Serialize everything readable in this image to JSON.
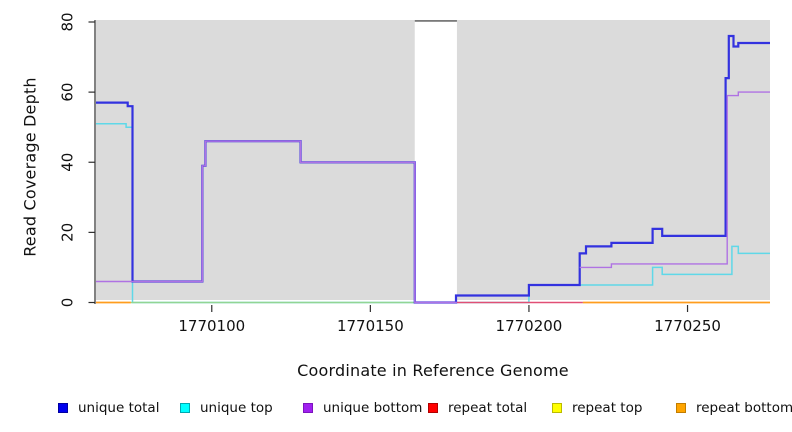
{
  "figure_type": "R step-line coverage plot",
  "chart_data": {
    "type": "line",
    "line_style": "step",
    "title": "",
    "xlabel": "Coordinate in Reference Genome",
    "ylabel": "Read Coverage Depth",
    "xlim": [
      1770063.5,
      1770276
    ],
    "ylim": [
      0,
      80
    ],
    "x_ticks": [
      1770100,
      1770150,
      1770200,
      1770250
    ],
    "y_ticks": [
      0,
      20,
      40,
      60,
      80
    ],
    "grid": false,
    "plot_bg_color": "#DBDBDB",
    "gap_region": {
      "note": "white uncovered interval in reference coordinates",
      "x_start": 1770164,
      "x_end": 1770177.3,
      "top_border_color": "#7A7A7A"
    },
    "legend_position": "bottom",
    "legend": [
      {
        "label": "unique total",
        "fill": "#0000EE",
        "border": "#0000A0"
      },
      {
        "label": "unique top",
        "fill": "#00FFFF",
        "border": "#00A8B0"
      },
      {
        "label": "unique bottom",
        "fill": "#A020F0",
        "border": "#7C14BE"
      },
      {
        "label": "repeat total",
        "fill": "#FF0000",
        "border": "#B00000"
      },
      {
        "label": "repeat top",
        "fill": "#FFFF00",
        "border": "#BBBB00"
      },
      {
        "label": "repeat bottom",
        "fill": "#FFA500",
        "border": "#C27D00"
      }
    ],
    "series": [
      {
        "name": "unique top",
        "color": "#5FD8E8",
        "width": 1.5,
        "segments": [
          {
            "points": [
              [
                1770063.5,
                51
              ],
              [
                1770073,
                50
              ],
              [
                1770075,
                0
              ],
              [
                1770200,
                5
              ],
              [
                1770239,
                10
              ],
              [
                1770242,
                8
              ],
              [
                1770264,
                16
              ],
              [
                1770266,
                14
              ]
            ],
            "end": 1770276
          }
        ]
      },
      {
        "name": "repeat top",
        "color": "#93D593",
        "width": 1.6,
        "render_note": "repeat-top depth 0; renders pale green where it overlaps unique-top baseline",
        "segments": [
          {
            "points": [
              [
                1770074.5,
                0
              ]
            ],
            "end": 1770164
          }
        ]
      },
      {
        "name": "repeat total",
        "color": "#E14F75",
        "width": 1.6,
        "segments": [
          {
            "points": [
              [
                1770164,
                0
              ]
            ],
            "end": 1770217
          }
        ]
      },
      {
        "name": "repeat bottom",
        "color": "#FF9D1E",
        "width": 1.8,
        "segments": [
          {
            "points": [
              [
                1770063.5,
                0
              ]
            ],
            "end": 1770074.5
          },
          {
            "points": [
              [
                1770217,
                0
              ]
            ],
            "end": 1770276
          }
        ]
      },
      {
        "name": "unique total",
        "color": "#3332DF",
        "width": 2.2,
        "segments": [
          {
            "points": [
              [
                1770063.5,
                57
              ],
              [
                1770073.5,
                56
              ],
              [
                1770075,
                6
              ],
              [
                1770097,
                39
              ],
              [
                1770098,
                46
              ],
              [
                1770128,
                40
              ],
              [
                1770164,
                0
              ],
              [
                1770177,
                2
              ],
              [
                1770200,
                5
              ],
              [
                1770216,
                14
              ],
              [
                1770218,
                16
              ],
              [
                1770226,
                17
              ],
              [
                1770239,
                21
              ],
              [
                1770242,
                19
              ],
              [
                1770262,
                64
              ],
              [
                1770263,
                76
              ],
              [
                1770264.5,
                73
              ],
              [
                1770266,
                74
              ]
            ],
            "end": 1770276
          }
        ]
      },
      {
        "name": "unique bottom",
        "color": "#AF72E3",
        "width": 1.4,
        "segments": [
          {
            "points": [
              [
                1770063.5,
                6
              ],
              [
                1770097,
                39
              ],
              [
                1770098,
                46
              ],
              [
                1770128,
                40
              ],
              [
                1770164,
                0
              ]
            ],
            "end": 1770177.3
          },
          {
            "points": [
              [
                1770216,
                10
              ],
              [
                1770226,
                11
              ],
              [
                1770262.5,
                59
              ],
              [
                1770266,
                60
              ]
            ],
            "end": 1770276
          }
        ]
      }
    ]
  }
}
